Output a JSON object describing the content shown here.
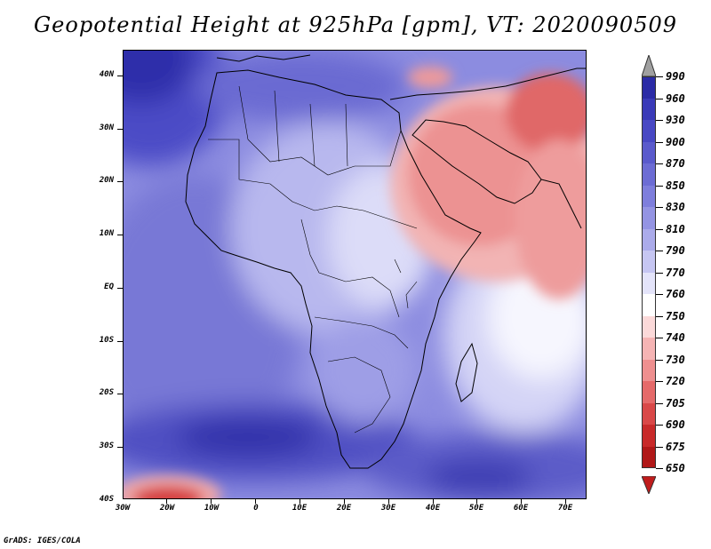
{
  "title": "Geopotential Height at 925hPa [gpm], VT: 2020090509",
  "credit": "GrADS: IGES/COLA",
  "map": {
    "region": "Africa and Middle East",
    "lon_range": [
      -30,
      77
    ],
    "lat_range": [
      -40,
      45
    ],
    "lat_labels": [
      "40N",
      "30N",
      "20N",
      "10N",
      "EQ",
      "10S",
      "20S",
      "30S",
      "40S"
    ],
    "lat_values": [
      40,
      30,
      20,
      10,
      0,
      -10,
      -20,
      -30,
      -40
    ],
    "lon_labels": [
      "30W",
      "20W",
      "10W",
      "0",
      "10E",
      "20E",
      "30E",
      "40E",
      "50E",
      "60E",
      "70E"
    ],
    "lon_values": [
      -30,
      -20,
      -10,
      0,
      10,
      20,
      30,
      40,
      50,
      60,
      70
    ]
  },
  "colorbar": {
    "levels": [
      "990",
      "960",
      "930",
      "900",
      "870",
      "850",
      "830",
      "810",
      "790",
      "770",
      "760",
      "750",
      "740",
      "730",
      "720",
      "705",
      "690",
      "675",
      "650"
    ],
    "colors": [
      "#1a1a8c",
      "#2b2ba6",
      "#3a3ab8",
      "#4848c4",
      "#5a5acc",
      "#6c6cd4",
      "#7e7edc",
      "#9494e3",
      "#ababea",
      "#c6c6f2",
      "#e4e4fa",
      "#ffffff",
      "#fbd9d9",
      "#f5b4b4",
      "#ee8f8f",
      "#e56a6a",
      "#d94848",
      "#c82a2a",
      "#b01818"
    ],
    "top_arrow_color": "#a0a0a0",
    "bottom_arrow_color": "#c01c1c"
  }
}
